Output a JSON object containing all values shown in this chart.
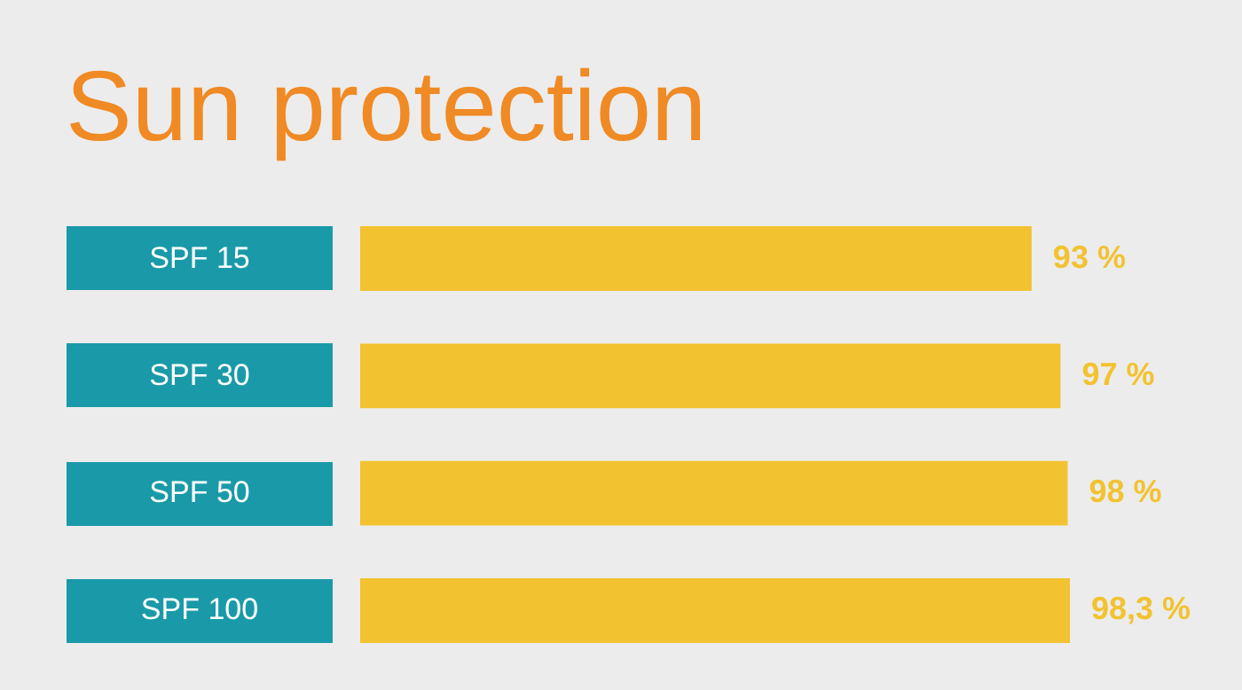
{
  "chart_data": {
    "type": "bar",
    "orientation": "horizontal",
    "title": "Sun protection",
    "categories": [
      "SPF 15",
      "SPF 30",
      "SPF 50",
      "SPF 100"
    ],
    "values": [
      93,
      97,
      98,
      98.3
    ],
    "value_labels": [
      "93 %",
      "97 %",
      "98 %",
      "98,3 %"
    ],
    "color": "#f2c230"
  }
}
